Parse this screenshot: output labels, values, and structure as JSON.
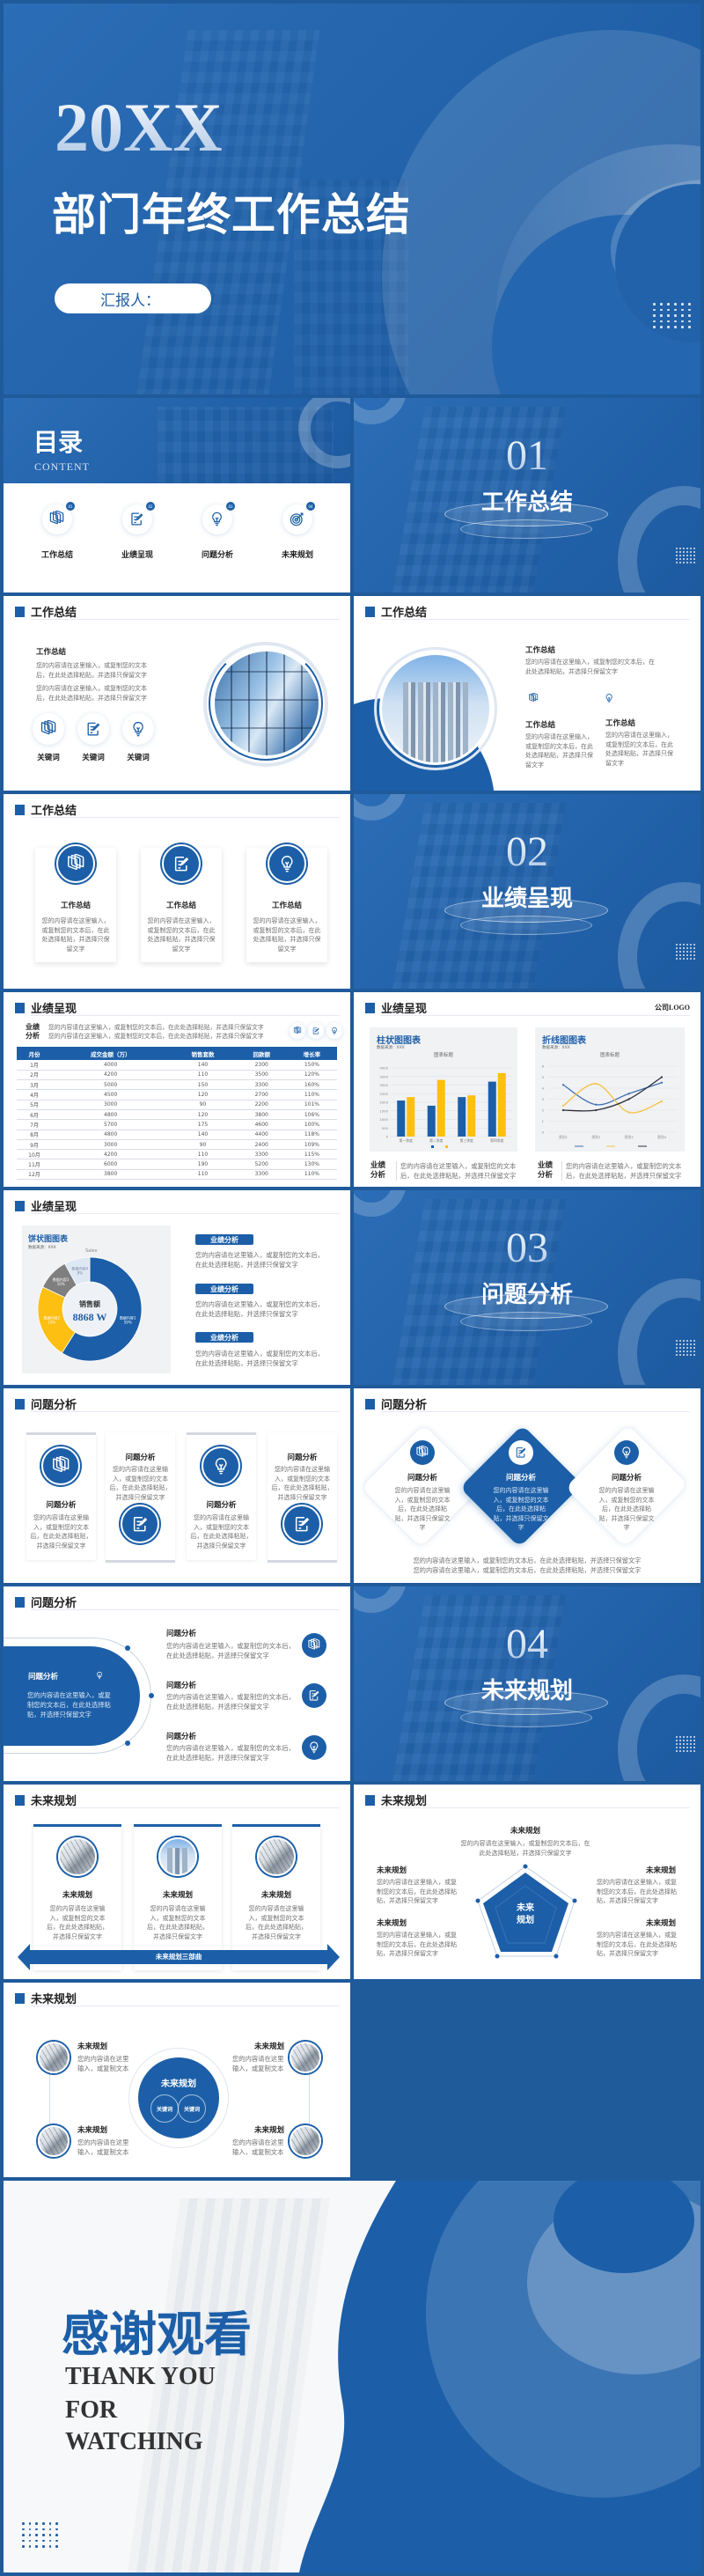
{
  "cover": {
    "year": "20XX",
    "title": "部门年终工作总结",
    "reporter_label": "汇报人："
  },
  "common": {
    "body": "您的内容请在这里输入，或复制您的文本后，在此处选择粘贴，并选择只保留文字",
    "body_short": "您的内容请在这里输入，或复制文本",
    "keyword": "关键词",
    "analysis_label": "业绩分析"
  },
  "toc": {
    "title": "目录",
    "subtitle": "CONTENT",
    "items": [
      {
        "num": "01",
        "label": "工作总结",
        "icon": "layers"
      },
      {
        "num": "02",
        "label": "业绩呈现",
        "icon": "edit"
      },
      {
        "num": "03",
        "label": "问题分析",
        "icon": "bulb"
      },
      {
        "num": "04",
        "label": "未来规划",
        "icon": "target"
      }
    ]
  },
  "sections": [
    {
      "num": "01",
      "title": "工作总结"
    },
    {
      "num": "02",
      "title": "业绩呈现"
    },
    {
      "num": "03",
      "title": "问题分析"
    },
    {
      "num": "04",
      "title": "未来规划"
    }
  ],
  "headers": {
    "summary": "工作总结",
    "performance": "业绩呈现",
    "problems": "问题分析",
    "future": "未来规划"
  },
  "summary": {
    "item_title": "工作总结"
  },
  "performance_table": {
    "columns": [
      "月份",
      "成交金额（万）",
      "销售套数",
      "回款额",
      "增长率"
    ],
    "rows": [
      [
        "1月",
        "4000",
        "140",
        "2300",
        "150%"
      ],
      [
        "2月",
        "4200",
        "110",
        "3500",
        "120%"
      ],
      [
        "3月",
        "5000",
        "150",
        "3300",
        "160%"
      ],
      [
        "4月",
        "4500",
        "120",
        "2700",
        "110%"
      ],
      [
        "5月",
        "3000",
        "90",
        "2200",
        "101%"
      ],
      [
        "6月",
        "4800",
        "120",
        "3800",
        "106%"
      ],
      [
        "7月",
        "5700",
        "175",
        "4600",
        "100%"
      ],
      [
        "8月",
        "4800",
        "140",
        "4400",
        "118%"
      ],
      [
        "9月",
        "3000",
        "90",
        "2400",
        "109%"
      ],
      [
        "10月",
        "4200",
        "110",
        "3300",
        "115%"
      ],
      [
        "11月",
        "6000",
        "190",
        "5200",
        "130%"
      ],
      [
        "12月",
        "3800",
        "110",
        "3300",
        "110%"
      ]
    ]
  },
  "company_logo": "公司LOGO",
  "chart_data": [
    {
      "type": "bar",
      "panel_title": "柱状图图表",
      "source": "数据来源：XXX",
      "title": "图表标题",
      "categories": [
        "第一季度",
        "第二季度",
        "第三季度",
        "第四季度"
      ],
      "series": [
        {
          "color": "#1c5fa8",
          "values": [
            2100,
            1800,
            2300,
            3200
          ]
        },
        {
          "color": "#fcbf12",
          "values": [
            2300,
            3300,
            2400,
            3700
          ]
        }
      ],
      "ylim": [
        0,
        4000
      ],
      "yticks": [
        0,
        500,
        1000,
        1500,
        2000,
        2500,
        3000,
        3500,
        4000
      ],
      "grid": true,
      "legend": "bottom"
    },
    {
      "type": "line",
      "panel_title": "折线图图表",
      "source": "数据来源：XXX",
      "title": "图表标题",
      "categories": [
        "类别1",
        "类别2",
        "类别3",
        "类别4"
      ],
      "series": [
        {
          "color": "#3f6fb0",
          "values": [
            4.3,
            2.5,
            3.5,
            4.5
          ]
        },
        {
          "color": "#f5c242",
          "values": [
            2.4,
            4.4,
            1.8,
            2.8
          ]
        },
        {
          "color": "#2b2f3a",
          "values": [
            2.0,
            2.0,
            3.0,
            5.0
          ]
        }
      ],
      "ylim": [
        0,
        6
      ],
      "yticks": [
        0,
        1,
        2,
        3,
        4,
        5,
        6
      ],
      "grid": true,
      "smooth": true,
      "legend": "bottom"
    },
    {
      "type": "pie",
      "panel_title": "饼状图图表",
      "source": "数据来源：XXX",
      "title": "Sales",
      "center_label": "销售额",
      "center_value": "8868 W",
      "slices": [
        {
          "label": "数据内容1",
          "value": 59,
          "color": "#1c5fa8"
        },
        {
          "label": "数据内容2",
          "value": 23,
          "color": "#fcbf12"
        },
        {
          "label": "数据内容3",
          "value": 10,
          "color": "#7f7f7f"
        },
        {
          "label": "数据内容4",
          "value": 8,
          "color": "#dde8f4"
        }
      ]
    }
  ],
  "problems": {
    "item_title": "问题分析"
  },
  "future": {
    "item_title": "未来规划",
    "arrow_label": "未来规划三部曲",
    "center": "未来规划",
    "center_lines": [
      "未来",
      "规划"
    ]
  },
  "ending": {
    "title": "感谢观看",
    "line1": "THANK YOU",
    "line2": "FOR",
    "line3": "WATCHING"
  },
  "colors": {
    "primary": "#1c5fa8",
    "accent": "#fcbf12",
    "border": "#1f5b9b"
  }
}
